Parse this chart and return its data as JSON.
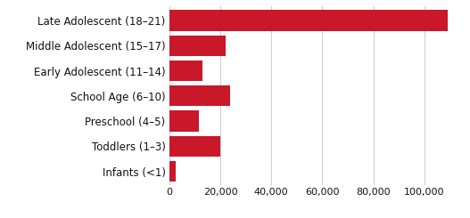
{
  "categories": [
    "Infants (<1)",
    "Toddlers (1–3)",
    "Preschool (4–5)",
    "School Age (6–10)",
    "Early Adolescent (11–14)",
    "Middle Adolescent (15–17)",
    "Late Adolescent (18–21)"
  ],
  "values": [
    2500,
    20000,
    11500,
    24000,
    13000,
    22000,
    109000
  ],
  "bar_color": "#c8182a",
  "xlim": [
    0,
    116000
  ],
  "xticks": [
    0,
    20000,
    40000,
    60000,
    80000,
    100000
  ],
  "xtick_labels": [
    "0",
    "20,000",
    "40,000",
    "60,000",
    "80,000",
    "100,000"
  ],
  "background_color": "#ffffff",
  "grid_color": "#cccccc",
  "label_fontsize": 8.5,
  "tick_fontsize": 8.0,
  "bar_height": 0.82
}
